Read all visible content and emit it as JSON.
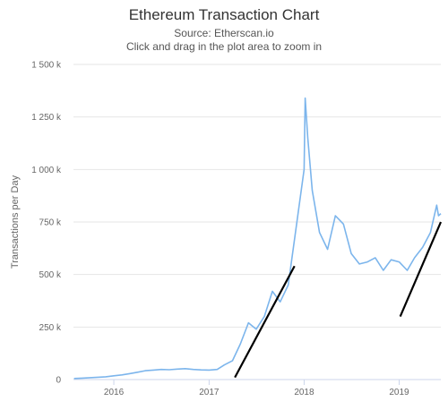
{
  "chart_data": {
    "type": "line",
    "title": "Ethereum Transaction Chart",
    "subtitle_lines": [
      "Source: Etherscan.io",
      "Click and drag in the plot area to zoom in"
    ],
    "ylabel": "Transactions per Day",
    "xlabel": "",
    "x_range": [
      "2015-07-30",
      "2019-06-10"
    ],
    "ylim": [
      0,
      1500000
    ],
    "y_ticks": [
      {
        "value": 0,
        "label": "0"
      },
      {
        "value": 250000,
        "label": "250 k"
      },
      {
        "value": 500000,
        "label": "500 k"
      },
      {
        "value": 750000,
        "label": "750 k"
      },
      {
        "value": 1000000,
        "label": "1 000 k"
      },
      {
        "value": 1250000,
        "label": "1 250 k"
      },
      {
        "value": 1500000,
        "label": "1 500 k"
      }
    ],
    "x_ticks": [
      {
        "date": "2016-01-01",
        "label": "2016"
      },
      {
        "date": "2017-01-01",
        "label": "2017"
      },
      {
        "date": "2018-01-01",
        "label": "2018"
      },
      {
        "date": "2019-01-01",
        "label": "2019"
      }
    ],
    "grid": true,
    "legend": "none",
    "series": [
      {
        "color": "#7cb5ec",
        "points": [
          [
            "2015-08-01",
            5000
          ],
          [
            "2015-09-01",
            7000
          ],
          [
            "2015-10-01",
            9000
          ],
          [
            "2015-11-01",
            11000
          ],
          [
            "2015-12-01",
            13000
          ],
          [
            "2016-01-01",
            18000
          ],
          [
            "2016-02-01",
            22000
          ],
          [
            "2016-03-01",
            28000
          ],
          [
            "2016-04-01",
            35000
          ],
          [
            "2016-05-01",
            42000
          ],
          [
            "2016-06-01",
            45000
          ],
          [
            "2016-07-01",
            48000
          ],
          [
            "2016-08-01",
            47000
          ],
          [
            "2016-09-01",
            50000
          ],
          [
            "2016-10-01",
            52000
          ],
          [
            "2016-11-01",
            48000
          ],
          [
            "2016-12-01",
            46000
          ],
          [
            "2017-01-01",
            45000
          ],
          [
            "2017-02-01",
            48000
          ],
          [
            "2017-03-01",
            70000
          ],
          [
            "2017-04-01",
            90000
          ],
          [
            "2017-05-01",
            170000
          ],
          [
            "2017-06-01",
            270000
          ],
          [
            "2017-07-01",
            240000
          ],
          [
            "2017-08-01",
            300000
          ],
          [
            "2017-09-01",
            420000
          ],
          [
            "2017-10-01",
            370000
          ],
          [
            "2017-11-01",
            450000
          ],
          [
            "2017-12-01",
            720000
          ],
          [
            "2018-01-01",
            1000000
          ],
          [
            "2018-01-05",
            1340000
          ],
          [
            "2018-01-15",
            1150000
          ],
          [
            "2018-02-01",
            900000
          ],
          [
            "2018-03-01",
            700000
          ],
          [
            "2018-04-01",
            620000
          ],
          [
            "2018-05-01",
            780000
          ],
          [
            "2018-06-01",
            740000
          ],
          [
            "2018-07-01",
            600000
          ],
          [
            "2018-08-01",
            550000
          ],
          [
            "2018-09-01",
            560000
          ],
          [
            "2018-10-01",
            580000
          ],
          [
            "2018-11-01",
            520000
          ],
          [
            "2018-12-01",
            570000
          ],
          [
            "2019-01-01",
            560000
          ],
          [
            "2019-02-01",
            520000
          ],
          [
            "2019-03-01",
            580000
          ],
          [
            "2019-04-01",
            630000
          ],
          [
            "2019-05-01",
            700000
          ],
          [
            "2019-05-25",
            830000
          ],
          [
            "2019-06-01",
            780000
          ],
          [
            "2019-06-10",
            790000
          ]
        ]
      }
    ],
    "annotations": [
      {
        "type": "trend-line",
        "from": [
          "2017-04-10",
          10000
        ],
        "to": [
          "2017-11-25",
          540000
        ],
        "color": "#000000"
      },
      {
        "type": "trend-line",
        "from": [
          "2019-01-05",
          300000
        ],
        "to": [
          "2019-06-10",
          750000
        ],
        "color": "#000000"
      }
    ]
  }
}
